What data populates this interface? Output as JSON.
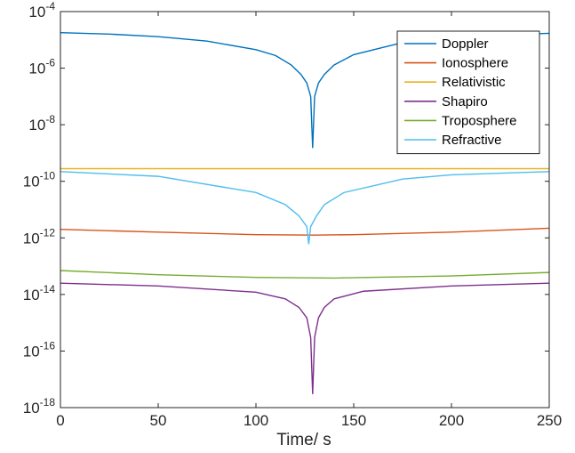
{
  "chart_data": {
    "type": "line",
    "xlabel": "Time/ s",
    "ylabel": "",
    "xlim": [
      0,
      250
    ],
    "ylim": [
      1e-18,
      0.0001
    ],
    "yscale": "log",
    "xticks": [
      0,
      50,
      100,
      150,
      200,
      250
    ],
    "ytick_exponents": [
      -18,
      -16,
      -14,
      -12,
      -10,
      -8,
      -6,
      -4
    ],
    "ytick_base": "10",
    "grid": false,
    "legend_position": "top-right",
    "series": [
      {
        "name": "Doppler",
        "color": "#0072BD",
        "x": [
          0,
          25,
          50,
          75,
          100,
          110,
          118,
          123,
          126,
          128,
          129,
          130,
          132,
          135,
          140,
          150,
          175,
          200,
          225,
          250
        ],
        "y": [
          1.8e-05,
          1.6e-05,
          1.3e-05,
          9e-06,
          4.5e-06,
          2.8e-06,
          1.3e-06,
          6e-07,
          3e-07,
          1e-07,
          1.5e-09,
          1e-07,
          3e-07,
          6e-07,
          1.3e-06,
          3e-06,
          8e-06,
          1.2e-05,
          1.5e-05,
          1.7e-05
        ]
      },
      {
        "name": "Ionosphere",
        "color": "#D95319",
        "x": [
          0,
          50,
          100,
          130,
          150,
          200,
          250
        ],
        "y": [
          2e-12,
          1.6e-12,
          1.3e-12,
          1.25e-12,
          1.3e-12,
          1.6e-12,
          2.2e-12
        ]
      },
      {
        "name": "Relativistic",
        "color": "#EDB120",
        "x": [
          0,
          125,
          250
        ],
        "y": [
          2.8e-10,
          2.8e-10,
          2.8e-10
        ]
      },
      {
        "name": "Shapiro",
        "color": "#7E2F8E",
        "x": [
          0,
          50,
          100,
          115,
          122,
          126,
          128,
          129,
          130,
          132,
          135,
          140,
          155,
          200,
          250
        ],
        "y": [
          2.5e-14,
          2e-14,
          1.2e-14,
          7e-15,
          3.5e-15,
          1.5e-15,
          3e-16,
          3e-18,
          3e-16,
          1.5e-15,
          3.5e-15,
          7e-15,
          1.3e-14,
          2e-14,
          2.5e-14
        ]
      },
      {
        "name": "Troposphere",
        "color": "#77AC30",
        "x": [
          0,
          50,
          100,
          140,
          200,
          250
        ],
        "y": [
          7e-14,
          5e-14,
          4e-14,
          3.8e-14,
          4.5e-14,
          6e-14
        ]
      },
      {
        "name": "Refractive",
        "color": "#4DBEEE",
        "x": [
          0,
          50,
          100,
          115,
          122,
          126,
          127,
          128,
          131,
          135,
          145,
          175,
          200,
          250
        ],
        "y": [
          2.2e-10,
          1.5e-10,
          4e-11,
          1.5e-11,
          6e-12,
          2.5e-12,
          6e-13,
          2.5e-12,
          6e-12,
          1.5e-11,
          4e-11,
          1.2e-10,
          1.7e-10,
          2.2e-10
        ]
      }
    ]
  }
}
